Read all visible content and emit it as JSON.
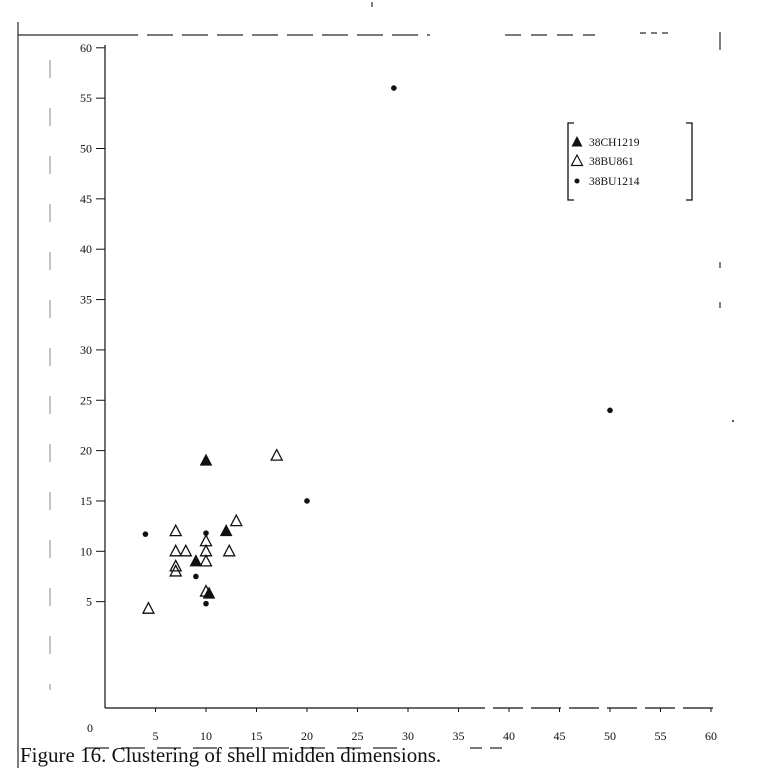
{
  "caption": "Figure 16. Clustering of shell midden dimensions.",
  "colors": {
    "ink": "#111111",
    "background": "#ffffff"
  },
  "chart_data": {
    "type": "scatter",
    "xlim": [
      0,
      60
    ],
    "ylim": [
      0,
      60
    ],
    "xticks": [
      5,
      10,
      15,
      20,
      25,
      30,
      35,
      40,
      45,
      50,
      55,
      60
    ],
    "yticks": [
      5,
      10,
      15,
      20,
      25,
      30,
      35,
      40,
      45,
      50,
      55,
      60
    ],
    "origin_label": "0",
    "grid": false,
    "legend_position": "top-right",
    "series": [
      {
        "name": "38CH1219",
        "marker": "filled-triangle",
        "points": [
          {
            "x": 10,
            "y": 19
          },
          {
            "x": 12,
            "y": 12
          },
          {
            "x": 9,
            "y": 9
          },
          {
            "x": 10.3,
            "y": 5.8
          }
        ]
      },
      {
        "name": "38BU861",
        "marker": "open-triangle",
        "points": [
          {
            "x": 4.3,
            "y": 4.3
          },
          {
            "x": 7,
            "y": 12
          },
          {
            "x": 7,
            "y": 10
          },
          {
            "x": 8,
            "y": 10
          },
          {
            "x": 7,
            "y": 8.5
          },
          {
            "x": 7,
            "y": 8
          },
          {
            "x": 10,
            "y": 11
          },
          {
            "x": 10,
            "y": 10
          },
          {
            "x": 10,
            "y": 9
          },
          {
            "x": 12.3,
            "y": 10
          },
          {
            "x": 13,
            "y": 13
          },
          {
            "x": 17,
            "y": 19.5
          },
          {
            "x": 10,
            "y": 6
          }
        ]
      },
      {
        "name": "38BU1214",
        "marker": "dot",
        "points": [
          {
            "x": 4,
            "y": 11.7
          },
          {
            "x": 10,
            "y": 11.8
          },
          {
            "x": 9,
            "y": 7.5
          },
          {
            "x": 10,
            "y": 4.8
          },
          {
            "x": 20,
            "y": 15
          },
          {
            "x": 28.6,
            "y": 56
          },
          {
            "x": 50,
            "y": 24
          }
        ]
      }
    ]
  }
}
